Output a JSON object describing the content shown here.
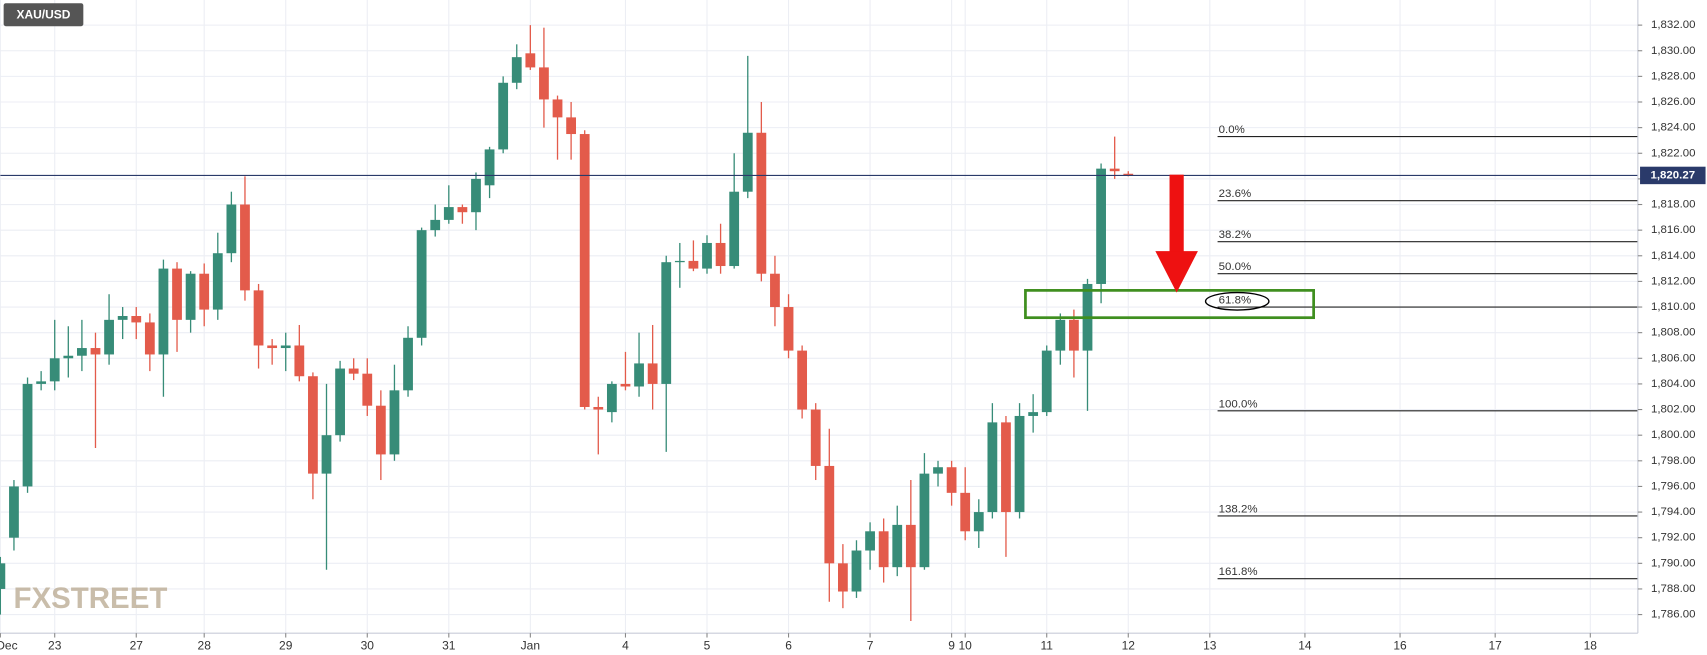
{
  "chart_data": {
    "type": "candlestick",
    "symbol": "XAU/USD",
    "watermark": "FXSTREET",
    "up_color": "#378c78",
    "down_color": "#e35b4b",
    "grid": true,
    "open": [
      1788,
      1792,
      1796,
      1804,
      1804.2,
      1806,
      1806.2,
      1806.8,
      1806.3,
      1809,
      1809.3,
      1808.8,
      1806.3,
      1813,
      1809,
      1812.6,
      1809.8,
      1814.2,
      1818,
      1811.3,
      1807,
      1806.8,
      1807,
      1804.6,
      1797,
      1800,
      1805.2,
      1804.8,
      1802.3,
      1798.5,
      1803.5,
      1807.6,
      1816,
      1816.8,
      1817.8,
      1817.4,
      1819.5,
      1822.3,
      1827.5,
      1829.8,
      1828.7,
      1826.2,
      1824.8,
      1823.5,
      1802.2,
      1801.8,
      1804,
      1803.8,
      1805.6,
      1804,
      1813.5,
      1813.6,
      1813,
      1815,
      1813.2,
      1819,
      1823.6,
      1812.6,
      1810,
      1806.6,
      1802,
      1797.6,
      1790,
      1787.8,
      1791,
      1792.5,
      1789.7,
      1793,
      1789.7,
      1797,
      1797.5,
      1795.5,
      1792.5,
      1794,
      1801,
      1794,
      1801.5,
      1801.8,
      1806.6,
      1809,
      1806.6,
      1811.8,
      1820.8,
      1820.4
    ],
    "high": [
      1790.5,
      1796.5,
      1804.5,
      1805,
      1809,
      1808.5,
      1809,
      1808,
      1811,
      1810,
      1810,
      1809.5,
      1813.7,
      1813.5,
      1812.8,
      1813.4,
      1815.8,
      1819,
      1820.2,
      1811.8,
      1807.5,
      1808,
      1808.6,
      1804.9,
      1804,
      1805.8,
      1806,
      1806,
      1803.5,
      1805.5,
      1808.5,
      1816.2,
      1818,
      1819.5,
      1818,
      1820.5,
      1822.5,
      1828,
      1830.5,
      1832,
      1831.8,
      1826.5,
      1826,
      1823.8,
      1803,
      1804.2,
      1806.5,
      1808,
      1808.6,
      1814,
      1815,
      1815.2,
      1815.6,
      1816.5,
      1822,
      1829.6,
      1826,
      1814,
      1811,
      1807,
      1802.5,
      1800.5,
      1791.5,
      1791.8,
      1793.2,
      1793.5,
      1794.5,
      1796.5,
      1798.6,
      1798,
      1798,
      1797.5,
      1795,
      1802.5,
      1801.5,
      1802.5,
      1803.2,
      1807,
      1809.5,
      1809.8,
      1812.2,
      1821.2,
      1823.3,
      1820.6
    ],
    "low": [
      1786,
      1791,
      1795.5,
      1803.5,
      1803.5,
      1804.5,
      1805,
      1799,
      1805.5,
      1807.5,
      1807.5,
      1805,
      1803,
      1806.5,
      1808,
      1808.5,
      1809,
      1813.5,
      1810.5,
      1805.2,
      1805.5,
      1805,
      1804.2,
      1795,
      1789.5,
      1799.5,
      1804.3,
      1801.5,
      1796.5,
      1798,
      1803,
      1807,
      1815.5,
      1816.5,
      1816.5,
      1816,
      1818.5,
      1822,
      1827,
      1828.5,
      1824,
      1821.5,
      1821.5,
      1802,
      1798.5,
      1801,
      1803.5,
      1803,
      1802,
      1798.7,
      1811.5,
      1812.8,
      1812.6,
      1812.6,
      1813,
      1818.5,
      1812,
      1808.5,
      1806,
      1801.3,
      1796.5,
      1787,
      1786.5,
      1787.3,
      1789.5,
      1788.5,
      1789,
      1785.5,
      1789.5,
      1796,
      1794.5,
      1791.8,
      1791.2,
      1793.5,
      1790.5,
      1793.5,
      1800.2,
      1801.5,
      1805.5,
      1804.5,
      1801.9,
      1810.3,
      1820,
      1820.2
    ],
    "close": [
      1790,
      1796,
      1804,
      1804.2,
      1806,
      1806.2,
      1806.8,
      1806.3,
      1809,
      1809.3,
      1808.8,
      1806.3,
      1813,
      1809,
      1812.6,
      1809.8,
      1814.2,
      1818,
      1811.3,
      1807,
      1806.8,
      1807,
      1804.6,
      1797,
      1800,
      1805.2,
      1804.8,
      1802.3,
      1798.5,
      1803.5,
      1807.6,
      1816,
      1816.8,
      1817.8,
      1817.4,
      1820,
      1822.3,
      1827.5,
      1829.5,
      1828.7,
      1826.2,
      1824.8,
      1823.5,
      1802.2,
      1802,
      1804,
      1803.8,
      1805.6,
      1804,
      1813.5,
      1813.6,
      1813,
      1815,
      1813.2,
      1819,
      1823.6,
      1812.6,
      1810,
      1806.6,
      1802,
      1797.6,
      1790,
      1787.8,
      1791,
      1792.5,
      1789.7,
      1793,
      1789.7,
      1797,
      1797.5,
      1795.5,
      1792.5,
      1794,
      1801,
      1794,
      1801.5,
      1801.8,
      1806.6,
      1809,
      1806.6,
      1811.8,
      1820.8,
      1820.6,
      1820.3
    ],
    "xlim": [
      0,
      120.5
    ],
    "xticks": [
      {
        "value": 0,
        "label": "Dec"
      },
      {
        "value": 4,
        "label": "23"
      },
      {
        "value": 10,
        "label": "27"
      },
      {
        "value": 15,
        "label": "28"
      },
      {
        "value": 21,
        "label": "29"
      },
      {
        "value": 27,
        "label": "30"
      },
      {
        "value": 33,
        "label": "31"
      },
      {
        "value": 39,
        "label": "Jan"
      },
      {
        "value": 46,
        "label": "4"
      },
      {
        "value": 52,
        "label": "5"
      },
      {
        "value": 58,
        "label": "6"
      },
      {
        "value": 64,
        "label": "7"
      },
      {
        "value": 70,
        "label": "9"
      },
      {
        "value": 71,
        "label": "10"
      },
      {
        "value": 77,
        "label": "11"
      },
      {
        "value": 83,
        "label": "12"
      },
      {
        "value": 89,
        "label": "13"
      },
      {
        "value": 96,
        "label": "14"
      },
      {
        "value": 103,
        "label": "16"
      },
      {
        "value": 110,
        "label": "17"
      },
      {
        "value": 117,
        "label": "18"
      }
    ],
    "ylim": [
      1784.55,
      1833.96
    ],
    "yticks": [
      {
        "value": 1786,
        "label": "1,786.00"
      },
      {
        "value": 1788,
        "label": "1,788.00"
      },
      {
        "value": 1790,
        "label": "1,790.00"
      },
      {
        "value": 1792,
        "label": "1,792.00"
      },
      {
        "value": 1794,
        "label": "1,794.00"
      },
      {
        "value": 1796,
        "label": "1,796.00"
      },
      {
        "value": 1798,
        "label": "1,798.00"
      },
      {
        "value": 1800,
        "label": "1,800.00"
      },
      {
        "value": 1802,
        "label": "1,802.00"
      },
      {
        "value": 1804,
        "label": "1,804.00"
      },
      {
        "value": 1806,
        "label": "1,806.00"
      },
      {
        "value": 1808,
        "label": "1,808.00"
      },
      {
        "value": 1810,
        "label": "1,810.00"
      },
      {
        "value": 1812,
        "label": "1,812.00"
      },
      {
        "value": 1814,
        "label": "1,814.00"
      },
      {
        "value": 1816,
        "label": "1,816.00"
      },
      {
        "value": 1818,
        "label": "1,818.00"
      },
      {
        "value": 1820,
        "label": "1,820.00"
      },
      {
        "value": 1822,
        "label": "1,822.00"
      },
      {
        "value": 1824,
        "label": "1,824.00"
      },
      {
        "value": 1826,
        "label": "1,826.00"
      },
      {
        "value": 1828,
        "label": "1,828.00"
      },
      {
        "value": 1830,
        "label": "1,830.00"
      },
      {
        "value": 1832,
        "label": "1,832.00"
      }
    ],
    "current_price": {
      "value": 1820.27,
      "label": "1,820.27"
    },
    "fib_levels": [
      {
        "label": "0.0%",
        "value": 1823.3
      },
      {
        "label": "23.6%",
        "value": 1818.3
      },
      {
        "label": "38.2%",
        "value": 1815.1
      },
      {
        "label": "50.0%",
        "value": 1812.6
      },
      {
        "label": "61.8%",
        "value": 1810.0
      },
      {
        "label": "100.0%",
        "value": 1801.9
      },
      {
        "label": "138.2%",
        "value": 1793.7
      },
      {
        "label": "161.8%",
        "value": 1788.8
      }
    ]
  }
}
